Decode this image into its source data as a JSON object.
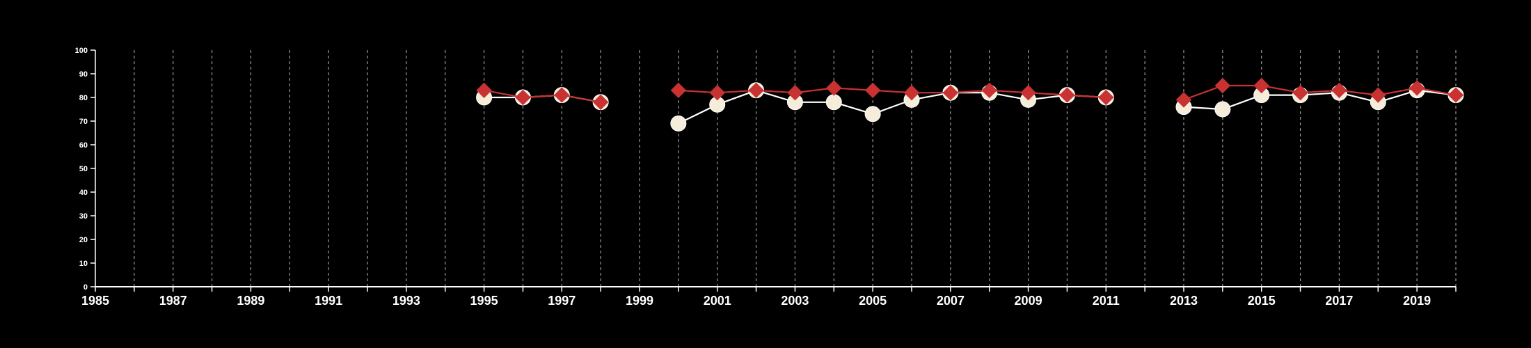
{
  "chart_data": {
    "type": "line",
    "title": "",
    "xlabel": "",
    "ylabel": "",
    "xlim": [
      1985,
      2020
    ],
    "ylim": [
      0,
      100
    ],
    "y_ticks": [
      0,
      10,
      20,
      30,
      40,
      50,
      60,
      70,
      80,
      90,
      100
    ],
    "x_ticks": [
      1985,
      1987,
      1989,
      1991,
      1993,
      1995,
      1997,
      1999,
      2001,
      2003,
      2005,
      2007,
      2009,
      2011,
      2013,
      2015,
      2017,
      2019
    ],
    "grid": "vertical dashed gridlines at every year",
    "background": "#000000",
    "series": [
      {
        "marker": "circle",
        "color": "#f5ecd9",
        "line_color": "#ffffff",
        "points": [
          [
            1995,
            80
          ],
          [
            1996,
            80
          ],
          [
            1997,
            81
          ],
          [
            1998,
            78
          ],
          [
            1999,
            null
          ],
          [
            2000,
            69
          ],
          [
            2001,
            77
          ],
          [
            2002,
            83
          ],
          [
            2003,
            78
          ],
          [
            2004,
            78
          ],
          [
            2005,
            73
          ],
          [
            2006,
            79
          ],
          [
            2007,
            82
          ],
          [
            2008,
            82
          ],
          [
            2009,
            79
          ],
          [
            2010,
            81
          ],
          [
            2011,
            80
          ],
          [
            2012,
            null
          ],
          [
            2013,
            76
          ],
          [
            2014,
            75
          ],
          [
            2015,
            81
          ],
          [
            2016,
            81
          ],
          [
            2017,
            82
          ],
          [
            2018,
            78
          ],
          [
            2019,
            83
          ],
          [
            2020,
            81
          ]
        ]
      },
      {
        "marker": "diamond",
        "color": "#c83232",
        "line_color": "#c83232",
        "points": [
          [
            1995,
            83
          ],
          [
            1996,
            80
          ],
          [
            1997,
            81
          ],
          [
            1998,
            78
          ],
          [
            1999,
            null
          ],
          [
            2000,
            83
          ],
          [
            2001,
            82
          ],
          [
            2002,
            83
          ],
          [
            2003,
            82
          ],
          [
            2004,
            84
          ],
          [
            2005,
            83
          ],
          [
            2006,
            82
          ],
          [
            2007,
            82
          ],
          [
            2008,
            83
          ],
          [
            2009,
            82
          ],
          [
            2010,
            81
          ],
          [
            2011,
            80
          ],
          [
            2012,
            null
          ],
          [
            2013,
            79
          ],
          [
            2014,
            85
          ],
          [
            2015,
            85
          ],
          [
            2016,
            82
          ],
          [
            2017,
            83
          ],
          [
            2018,
            81
          ],
          [
            2019,
            84
          ],
          [
            2020,
            81
          ]
        ]
      }
    ]
  }
}
